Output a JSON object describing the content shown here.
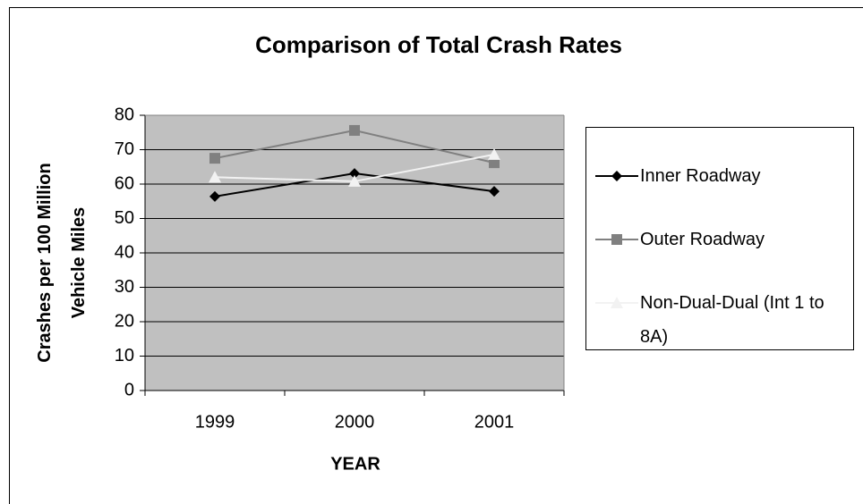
{
  "chart_data": {
    "type": "line",
    "title": "Comparison of Total Crash Rates",
    "x_label": "YEAR",
    "y_label": "Crashes per 100 Million Vehicle Miles",
    "categories": [
      "1999",
      "2000",
      "2001"
    ],
    "series": [
      {
        "name": "Inner Roadway",
        "color": "#000000",
        "marker": "diamond",
        "values": [
          56.4,
          63.1,
          57.9
        ]
      },
      {
        "name": "Outer Roadway",
        "color": "#808080",
        "marker": "square",
        "values": [
          67.5,
          75.6,
          66.2
        ]
      },
      {
        "name": "Non-Dual-Dual (Int 1 to 8A)",
        "color": "#f2f2f2",
        "marker": "triangle",
        "values": [
          62,
          60.8,
          68.6
        ]
      }
    ],
    "ylim": [
      0,
      80
    ],
    "yticks": [
      0,
      10,
      20,
      30,
      40,
      50,
      60,
      70,
      80
    ],
    "grid": true,
    "plot_background": "#c0c0c0",
    "legend": "right"
  }
}
